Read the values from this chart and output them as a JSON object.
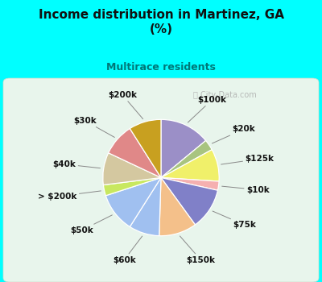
{
  "title": "Income distribution in Martinez, GA\n(%)",
  "subtitle": "Multirace residents",
  "watermark": "City-Data.com",
  "slices": [
    {
      "label": "$100k",
      "value": 14.0,
      "color": "#9b8fc7"
    },
    {
      "label": "$20k",
      "value": 3.0,
      "color": "#a8c480"
    },
    {
      "label": "$125k",
      "value": 9.0,
      "color": "#f0f06a"
    },
    {
      "label": "$10k",
      "value": 2.5,
      "color": "#f5b0b0"
    },
    {
      "label": "$75k",
      "value": 11.5,
      "color": "#8080c8"
    },
    {
      "label": "$150k",
      "value": 10.5,
      "color": "#f4c08a"
    },
    {
      "label": "$60k",
      "value": 8.5,
      "color": "#a0c0f0"
    },
    {
      "label": "$50k",
      "value": 11.0,
      "color": "#a0c0f0"
    },
    {
      "label": "> $200k",
      "value": 3.0,
      "color": "#c8e860"
    },
    {
      "label": "$40k",
      "value": 9.0,
      "color": "#d4c8a0"
    },
    {
      "label": "$30k",
      "value": 9.0,
      "color": "#e08888"
    },
    {
      "label": "$200k",
      "value": 9.0,
      "color": "#c8a020"
    }
  ],
  "figsize": [
    4.0,
    3.5
  ],
  "dpi": 100,
  "cyan_bg": "#00FFFF",
  "title_fontsize": 11,
  "subtitle_fontsize": 9,
  "label_fontsize": 7.5,
  "subtitle_color": "#007878"
}
